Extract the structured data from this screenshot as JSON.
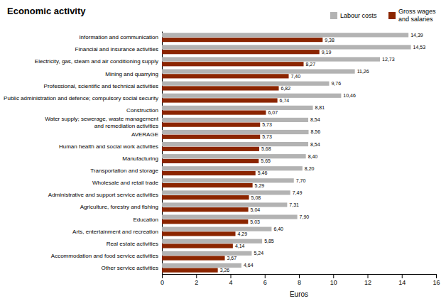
{
  "chart_data": {
    "type": "bar",
    "orientation": "horizontal",
    "title": "Economic activity",
    "xlabel": "Euros",
    "categories": [
      "Information and communication",
      "Financial and insurance activities",
      "Electricity, gas, steam and air conditioning supply",
      "Mining and quarrying",
      "Professional, scientific and technical activities",
      "Public administration and defence; compulsory social security",
      "Construction",
      "Water supply; sewerage, waste management\nand remediation activities",
      "AVERAGE",
      "Human health and social work activities",
      "Manufacturing",
      "Transportation and storage",
      "Wholesale and retail trade",
      "Administrative and support service activities",
      "Agriculture, forestry and fishing",
      "Education",
      "Arts, entertainment and recreation",
      "Real estate activities",
      "Accommodation and food service activities",
      "Other service activities"
    ],
    "series": [
      {
        "name": "Labour costs",
        "color": "#b3b3b3",
        "values": [
          14.39,
          14.53,
          12.73,
          11.26,
          9.76,
          10.46,
          8.81,
          8.54,
          8.56,
          8.54,
          8.4,
          8.2,
          7.7,
          7.49,
          7.31,
          7.9,
          6.4,
          5.85,
          5.24,
          4.64
        ],
        "value_labels": [
          "14,39",
          "14,53",
          "12,73",
          "11,26",
          "9,76",
          "10,46",
          "8,81",
          "8,54",
          "8,56",
          "8,54",
          "8,40",
          "8,20",
          "7,70",
          "7,49",
          "7,31",
          "7,90",
          "6,40",
          "5,85",
          "5,24",
          "4,64"
        ]
      },
      {
        "name": "Gross wages\nand salaries",
        "color": "#8b2500",
        "values": [
          9.38,
          9.19,
          8.27,
          7.4,
          6.82,
          6.74,
          6.07,
          5.73,
          5.73,
          5.68,
          5.65,
          5.46,
          5.29,
          5.08,
          5.04,
          5.03,
          4.29,
          4.14,
          3.67,
          3.26
        ],
        "value_labels": [
          "9,38",
          "9,19",
          "8,27",
          "7,40",
          "6,82",
          "6,74",
          "6,07",
          "5,73",
          "5,73",
          "5,68",
          "5,65",
          "5,46",
          "5,29",
          "5,08",
          "5,04",
          "5,03",
          "4,29",
          "4,14",
          "3,67",
          "3,26"
        ]
      }
    ],
    "xlim": [
      0,
      16
    ],
    "xticks": [
      0,
      2,
      4,
      6,
      8,
      10,
      12,
      14,
      16
    ],
    "grid": false,
    "legend": "top-right",
    "data_labels": true
  }
}
